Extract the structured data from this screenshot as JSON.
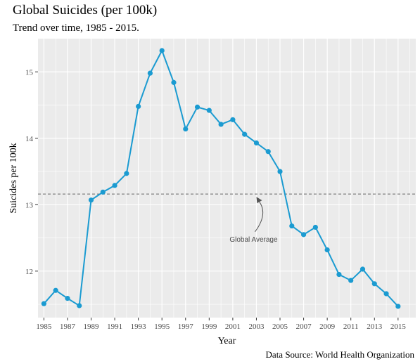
{
  "chart_data": {
    "type": "line",
    "title": "Global Suicides (per 100k)",
    "subtitle": "Trend over time, 1985 - 2015.",
    "caption": "Data Source: World Health Organization",
    "xlabel": "Year",
    "ylabel": "Suicides per 100k",
    "x": [
      1985,
      1986,
      1987,
      1988,
      1989,
      1990,
      1991,
      1992,
      1993,
      1994,
      1995,
      1996,
      1997,
      1998,
      1999,
      2000,
      2001,
      2002,
      2003,
      2004,
      2005,
      2006,
      2007,
      2008,
      2009,
      2010,
      2011,
      2012,
      2013,
      2014,
      2015
    ],
    "series": [
      {
        "values": [
          11.51,
          11.71,
          11.59,
          11.48,
          13.07,
          13.19,
          13.29,
          13.47,
          14.48,
          14.98,
          15.32,
          14.84,
          14.14,
          14.47,
          14.42,
          14.21,
          14.28,
          14.06,
          13.93,
          13.8,
          13.5,
          12.68,
          12.55,
          12.66,
          12.32,
          11.95,
          11.86,
          12.03,
          11.81,
          11.66,
          11.47
        ]
      }
    ],
    "xticks": [
      "1985",
      "1987",
      "1989",
      "1991",
      "1993",
      "1995",
      "1997",
      "1999",
      "2001",
      "2003",
      "2005",
      "2007",
      "2009",
      "2011",
      "2013",
      "2015"
    ],
    "yticks": [
      "12",
      "13",
      "14",
      "15"
    ],
    "xlim": [
      1984.5,
      2016.5
    ],
    "ylim": [
      11.3,
      15.5
    ],
    "reference_line": {
      "value": 13.16,
      "label": "Global Average",
      "style": "dashed"
    },
    "colors": {
      "line": "#1b9bd1",
      "panel": "#ebebeb",
      "grid": "#ffffff",
      "reference": "#666666"
    },
    "grid": true,
    "legend": "none"
  }
}
